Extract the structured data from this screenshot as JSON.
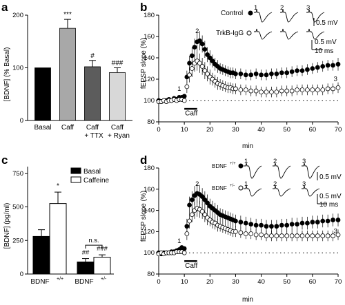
{
  "chart_data": [
    {
      "panel": "a",
      "type": "bar",
      "ylabel": "[BDNF] (% Basal)",
      "ylim": [
        0,
        200
      ],
      "yticks": [
        0,
        100,
        200
      ],
      "categories": [
        "Basal",
        "Caff",
        "Caff",
        "Caff"
      ],
      "sublabels": [
        "",
        "",
        "+ TTX",
        "+ Ryan"
      ],
      "values": [
        100,
        175,
        102,
        91
      ],
      "errors": [
        0,
        17,
        12,
        9
      ],
      "colors": [
        "#000000",
        "#a8a8a8",
        "#5c5c5c",
        "#d8d8d8"
      ],
      "annotations": [
        "",
        "***",
        "#",
        "###"
      ]
    },
    {
      "panel": "b",
      "type": "scatter",
      "xlabel": "min",
      "ylabel": "fEPSP slope (%)",
      "xlim": [
        0,
        70
      ],
      "ylim": [
        80,
        180
      ],
      "xticks": [
        0,
        10,
        20,
        30,
        40,
        50,
        60,
        70
      ],
      "yticks": [
        80,
        100,
        120,
        140,
        160,
        180
      ],
      "baseline": 100,
      "bar_label": "Caff",
      "bar_range": [
        10,
        15
      ],
      "markers": [
        "1",
        "2",
        "3"
      ],
      "marker_x": [
        8,
        15,
        69
      ],
      "series": [
        {
          "name": "Control",
          "filled": true,
          "x": [
            0,
            1,
            2,
            3,
            4,
            5,
            6,
            7,
            8,
            9,
            10,
            11,
            12,
            13,
            14,
            15,
            16,
            17,
            18,
            19,
            20,
            21,
            22,
            23,
            24,
            25,
            26,
            27,
            28,
            29,
            30,
            32,
            34,
            36,
            38,
            40,
            42,
            44,
            46,
            48,
            50,
            52,
            54,
            56,
            58,
            60,
            62,
            64,
            66,
            68,
            70
          ],
          "y": [
            100,
            99,
            100,
            100,
            101,
            100,
            102,
            101,
            103,
            103,
            104,
            122,
            135,
            142,
            150,
            155,
            156,
            153,
            148,
            143,
            140,
            137,
            134,
            132,
            130,
            129,
            128,
            127,
            126,
            126,
            125,
            125,
            124,
            124,
            125,
            124,
            124,
            125,
            125,
            126,
            126,
            127,
            128,
            128,
            129,
            130,
            131,
            132,
            133,
            133,
            134
          ],
          "err": [
            2,
            2,
            2,
            2,
            2,
            2,
            2,
            2,
            2,
            2,
            2,
            6,
            7,
            8,
            8,
            9,
            9,
            8,
            8,
            7,
            7,
            6,
            6,
            6,
            5,
            5,
            5,
            5,
            5,
            5,
            5,
            5,
            5,
            5,
            5,
            5,
            5,
            5,
            5,
            5,
            5,
            5,
            5,
            5,
            5,
            5,
            5,
            5,
            5,
            5,
            6
          ]
        },
        {
          "name": "TrkB-IgG",
          "filled": false,
          "x": [
            0,
            1,
            2,
            3,
            4,
            5,
            6,
            7,
            8,
            9,
            10,
            11,
            12,
            13,
            14,
            15,
            16,
            17,
            18,
            19,
            20,
            21,
            22,
            23,
            24,
            25,
            26,
            27,
            28,
            29,
            30,
            32,
            34,
            36,
            38,
            40,
            42,
            44,
            46,
            48,
            50,
            52,
            54,
            56,
            58,
            60,
            62,
            64,
            66,
            68,
            70
          ],
          "y": [
            99,
            99,
            100,
            99,
            100,
            100,
            101,
            100,
            101,
            101,
            100,
            113,
            124,
            130,
            135,
            137,
            135,
            132,
            128,
            125,
            122,
            120,
            118,
            116,
            115,
            114,
            113,
            112,
            112,
            111,
            111,
            110,
            110,
            109,
            109,
            108,
            108,
            108,
            108,
            109,
            109,
            109,
            110,
            110,
            110,
            110,
            110,
            110,
            111,
            111,
            112
          ],
          "err": [
            2,
            2,
            2,
            2,
            2,
            2,
            2,
            2,
            2,
            2,
            2,
            6,
            7,
            8,
            8,
            9,
            9,
            8,
            8,
            7,
            7,
            6,
            6,
            6,
            5,
            5,
            5,
            5,
            5,
            5,
            5,
            5,
            5,
            5,
            5,
            5,
            5,
            5,
            5,
            5,
            5,
            5,
            5,
            5,
            5,
            5,
            5,
            5,
            5,
            5,
            5
          ]
        }
      ],
      "inset": {
        "scale_mv": "0.5 mV",
        "scale_ms": "10 ms",
        "scale_mv2": "0.5 mV"
      }
    },
    {
      "panel": "c",
      "type": "bar",
      "ylabel": "[BDNF] (pg/ml)",
      "ylim": [
        0,
        800
      ],
      "yticks": [
        0,
        250,
        500,
        750
      ],
      "groups": [
        "BDNF",
        "BDNF"
      ],
      "group_sups": [
        "+/+",
        "+/-"
      ],
      "series": [
        {
          "name": "Basal",
          "color": "#000000",
          "values": [
            280,
            90
          ],
          "errors": [
            50,
            25
          ]
        },
        {
          "name": "Caffeine",
          "color": "#ffffff",
          "values": [
            525,
            125
          ],
          "errors": [
            85,
            18
          ]
        }
      ],
      "annotations": [
        "*",
        "##",
        "###",
        "n.s."
      ]
    },
    {
      "panel": "d",
      "type": "scatter",
      "xlabel": "min",
      "ylabel": "fEPSP slope (%)",
      "xlim": [
        0,
        70
      ],
      "ylim": [
        80,
        180
      ],
      "xticks": [
        0,
        10,
        20,
        30,
        40,
        50,
        60,
        70
      ],
      "yticks": [
        80,
        100,
        120,
        140,
        160,
        180
      ],
      "baseline": 100,
      "bar_label": "Caff",
      "bar_range": [
        10,
        15
      ],
      "markers": [
        "1",
        "2",
        "3"
      ],
      "marker_x": [
        8,
        15,
        69
      ],
      "series": [
        {
          "name": "BDNF",
          "sup": "+/+",
          "filled": true,
          "x": [
            0,
            1,
            2,
            3,
            4,
            5,
            6,
            7,
            8,
            9,
            10,
            11,
            12,
            13,
            14,
            15,
            16,
            17,
            18,
            19,
            20,
            21,
            22,
            23,
            24,
            25,
            26,
            27,
            28,
            29,
            30,
            32,
            34,
            36,
            38,
            40,
            42,
            44,
            46,
            48,
            50,
            52,
            54,
            56,
            58,
            60,
            62,
            64,
            66,
            68,
            70
          ],
          "y": [
            100,
            99,
            100,
            100,
            100,
            101,
            101,
            102,
            103,
            105,
            104,
            125,
            145,
            150,
            154,
            156,
            155,
            153,
            150,
            147,
            144,
            142,
            140,
            138,
            136,
            135,
            134,
            133,
            132,
            131,
            130,
            129,
            128,
            127,
            126,
            126,
            125,
            125,
            125,
            126,
            126,
            127,
            127,
            128,
            128,
            129,
            129,
            130,
            130,
            131,
            131
          ],
          "err": [
            2,
            2,
            2,
            2,
            2,
            2,
            2,
            2,
            2,
            2,
            2,
            7,
            8,
            8,
            9,
            9,
            9,
            8,
            8,
            8,
            7,
            7,
            7,
            7,
            6,
            6,
            6,
            6,
            6,
            6,
            6,
            6,
            6,
            6,
            6,
            6,
            6,
            6,
            6,
            6,
            6,
            6,
            6,
            6,
            6,
            6,
            6,
            6,
            6,
            6,
            6
          ]
        },
        {
          "name": "BDNF",
          "sup": "+/-",
          "filled": false,
          "x": [
            0,
            1,
            2,
            3,
            4,
            5,
            6,
            7,
            8,
            9,
            10,
            11,
            12,
            13,
            14,
            15,
            16,
            17,
            18,
            19,
            20,
            21,
            22,
            23,
            24,
            25,
            26,
            27,
            28,
            29,
            30,
            32,
            34,
            36,
            38,
            40,
            42,
            44,
            46,
            48,
            50,
            52,
            54,
            56,
            58,
            60,
            62,
            64,
            66,
            68,
            70
          ],
          "y": [
            99,
            100,
            99,
            100,
            100,
            100,
            100,
            101,
            101,
            101,
            100,
            118,
            130,
            136,
            140,
            142,
            141,
            139,
            136,
            133,
            131,
            129,
            128,
            126,
            125,
            124,
            123,
            122,
            121,
            120,
            120,
            119,
            118,
            118,
            117,
            117,
            116,
            116,
            116,
            116,
            116,
            116,
            116,
            116,
            116,
            116,
            116,
            116,
            116,
            116,
            117
          ],
          "err": [
            2,
            2,
            2,
            2,
            2,
            2,
            2,
            2,
            2,
            2,
            2,
            6,
            7,
            7,
            8,
            8,
            8,
            7,
            7,
            7,
            6,
            6,
            6,
            6,
            5,
            5,
            5,
            5,
            5,
            5,
            5,
            5,
            5,
            5,
            5,
            5,
            5,
            5,
            5,
            5,
            5,
            5,
            5,
            5,
            5,
            5,
            5,
            5,
            5,
            5,
            5
          ]
        }
      ],
      "inset": {
        "scale_mv": "0.5 mV",
        "scale_mv2": "0.5 mV",
        "scale_ms": "10 ms"
      }
    }
  ]
}
